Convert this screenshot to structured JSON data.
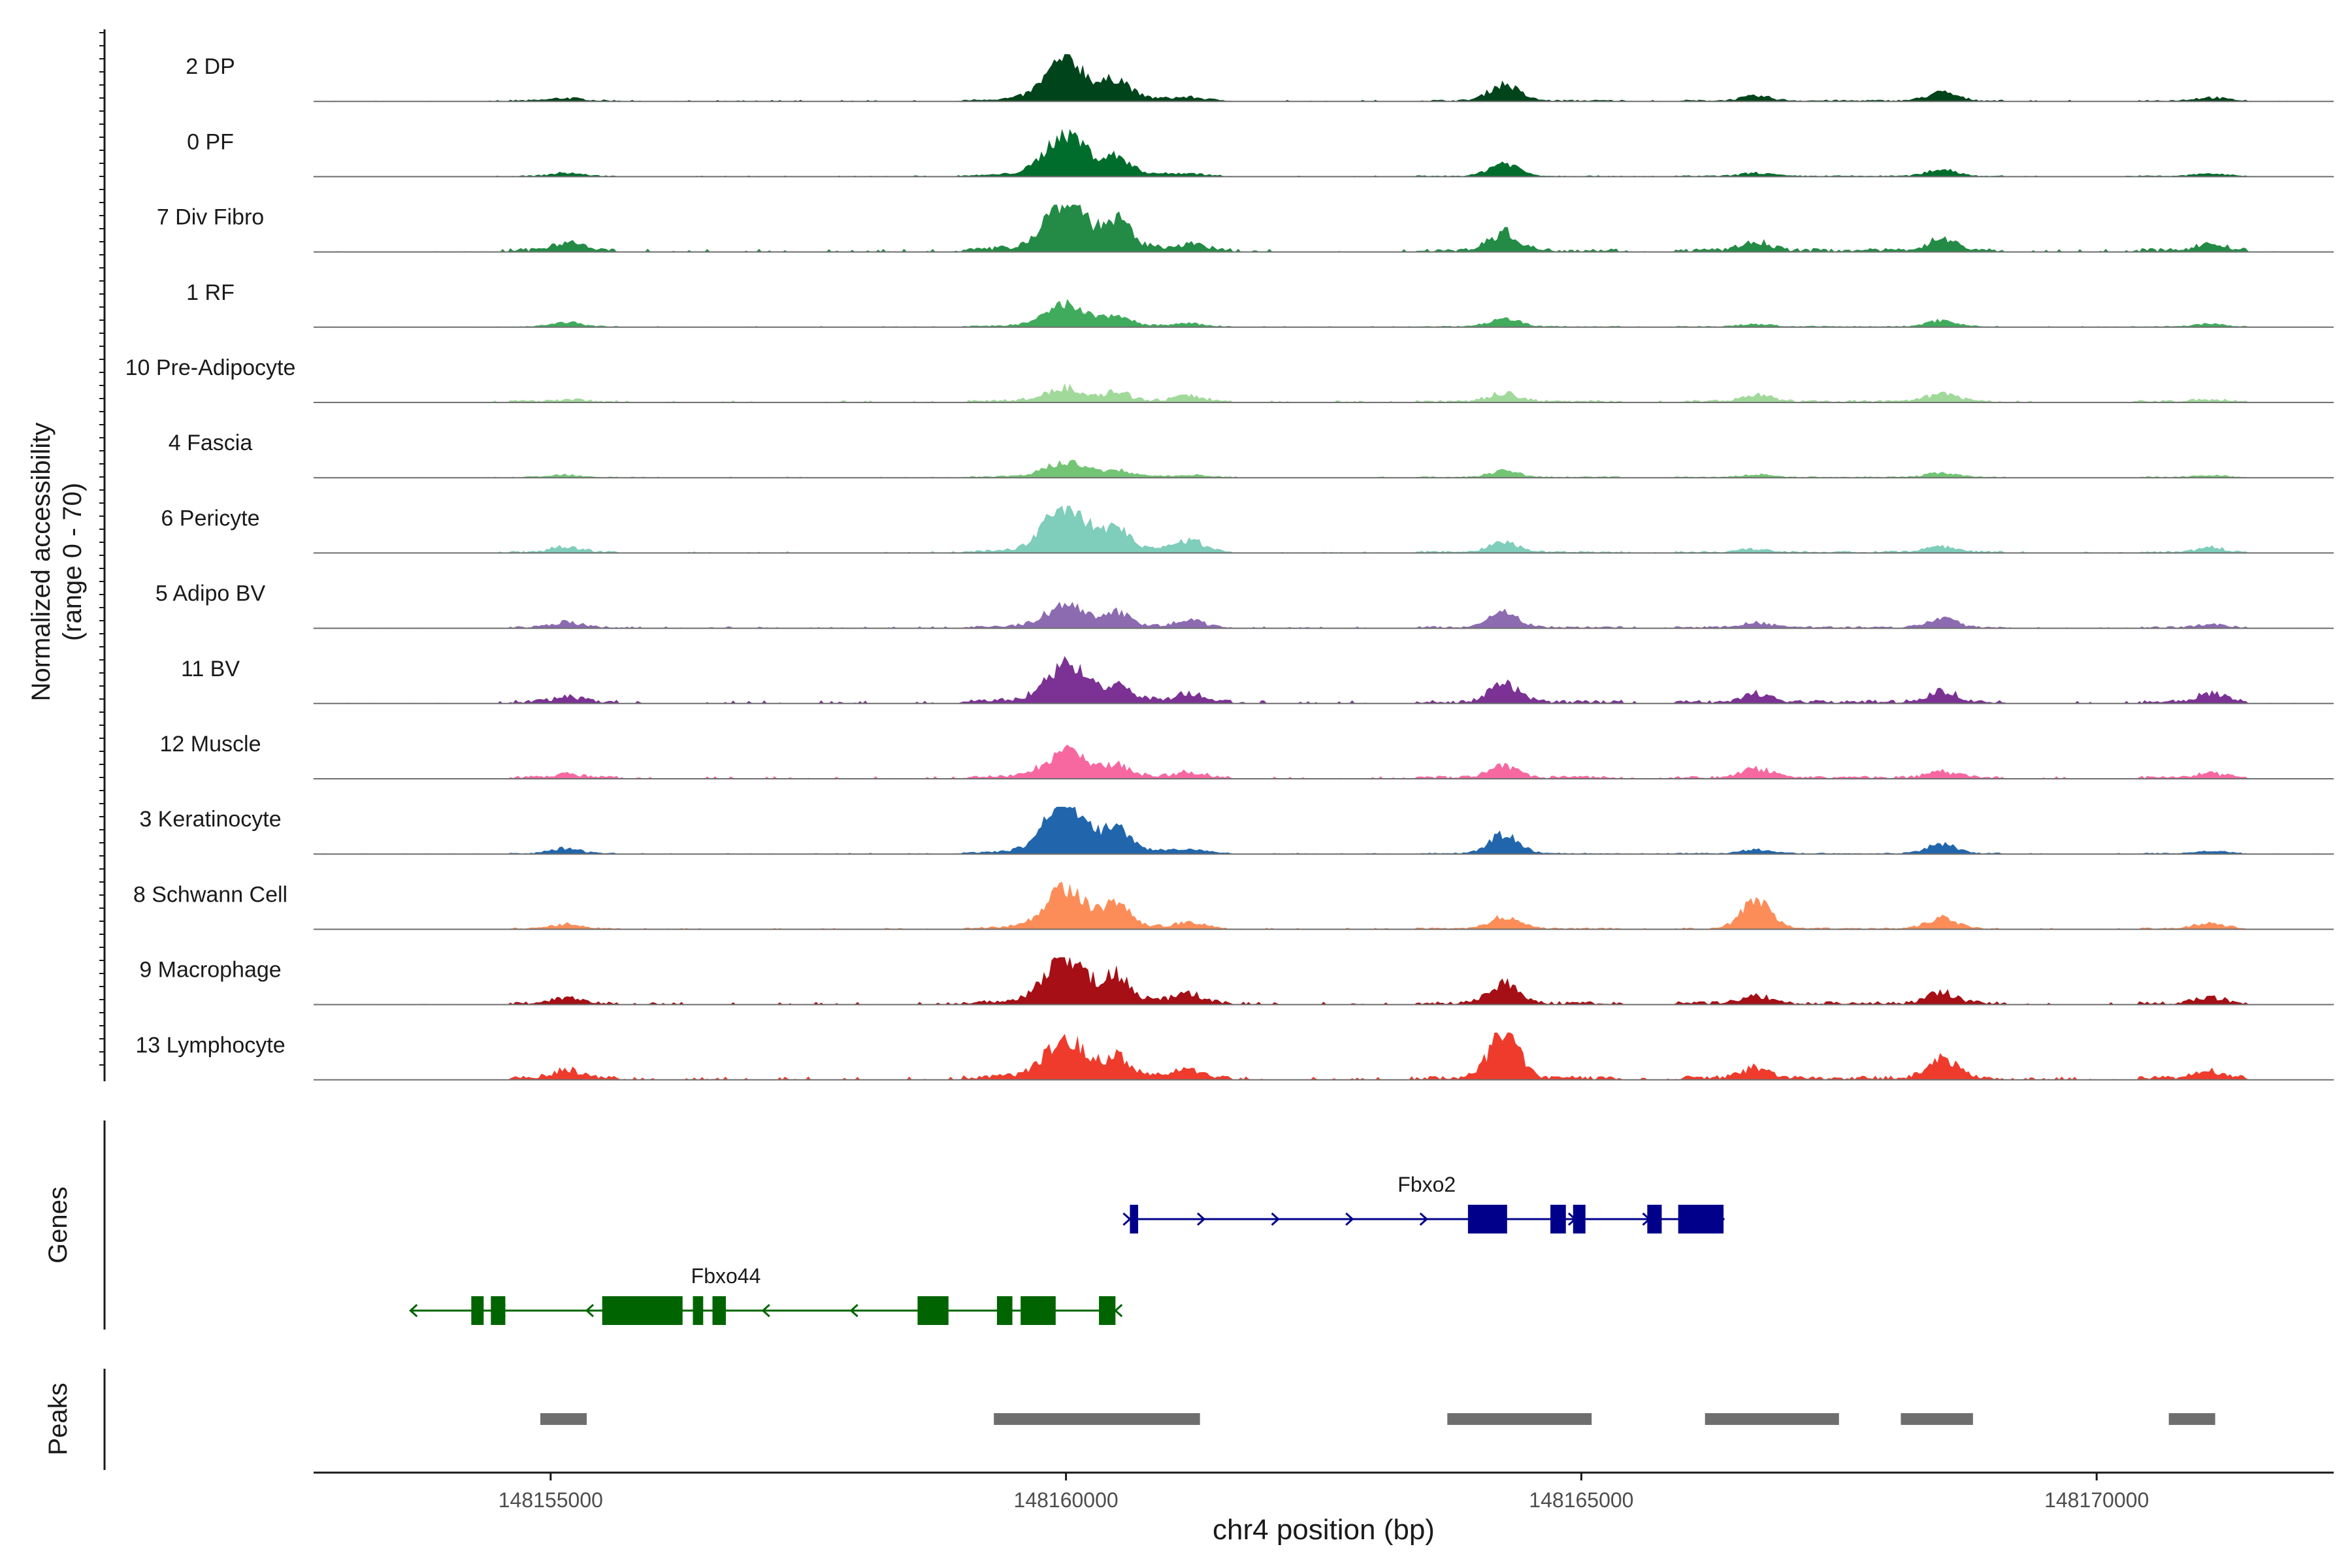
{
  "chart_data": {
    "type": "area",
    "title": "",
    "y_axis_title_line1": "Normalized accessibility",
    "y_axis_title_line2": "(range 0 - 70)",
    "ylim": [
      0,
      70
    ],
    "xlabel": "chr4 position (bp)",
    "xlim": [
      148152700,
      148172300
    ],
    "x_ticks": [
      148155000,
      148160000,
      148165000,
      148170000
    ],
    "x_tick_labels": [
      "148155000",
      "148160000",
      "148165000",
      "148170000"
    ],
    "regions": [
      [
        148154900,
        148155350
      ],
      [
        148159300,
        148161300
      ],
      [
        148163700,
        148165100
      ],
      [
        148166200,
        148167500
      ],
      [
        148168100,
        148168800
      ],
      [
        148170700,
        148171150
      ]
    ],
    "peak_positions": [
      148155150,
      148160000,
      148160500,
      148161200,
      148164250,
      148166700,
      148168500,
      148171100
    ],
    "tracks": [
      {
        "name": "2 DP",
        "color": "#00441b",
        "peak_heights": [
          4,
          57,
          26,
          4,
          26,
          7,
          13,
          5
        ],
        "noise": 4
      },
      {
        "name": "0 PF",
        "color": "#006d2c",
        "peak_heights": [
          5,
          60,
          22,
          3,
          21,
          5,
          11,
          4
        ],
        "noise": 3
      },
      {
        "name": "7 Div Fibro",
        "color": "#238b45",
        "peak_heights": [
          13,
          73,
          38,
          8,
          28,
          13,
          18,
          10
        ],
        "noise": 9
      },
      {
        "name": "1 RF",
        "color": "#41ab5d",
        "peak_heights": [
          7,
          30,
          13,
          4,
          14,
          4,
          10,
          4
        ],
        "noise": 3
      },
      {
        "name": "10 Pre-Adipocyte",
        "color": "#a1d99b",
        "peak_heights": [
          3,
          18,
          12,
          8,
          13,
          11,
          12,
          3
        ],
        "noise": 6
      },
      {
        "name": "4 Fascia",
        "color": "#74c476",
        "peak_heights": [
          4,
          21,
          8,
          3,
          10,
          4,
          7,
          3
        ],
        "noise": 3
      },
      {
        "name": "6 Pericyte",
        "color": "#7fcdbb",
        "peak_heights": [
          9,
          67,
          28,
          18,
          16,
          5,
          9,
          7
        ],
        "noise": 5
      },
      {
        "name": "5 Adipo BV",
        "color": "#8c6bb1",
        "peak_heights": [
          8,
          31,
          19,
          10,
          23,
          7,
          14,
          4
        ],
        "noise": 5
      },
      {
        "name": "11 BV",
        "color": "#7b3294",
        "peak_heights": [
          8,
          49,
          24,
          12,
          28,
          13,
          18,
          13
        ],
        "noise": 9
      },
      {
        "name": "12 Muscle",
        "color": "#f768a1",
        "peak_heights": [
          5,
          36,
          15,
          8,
          18,
          14,
          9,
          6
        ],
        "noise": 7
      },
      {
        "name": "3 Keratinocyte",
        "color": "#2166ac",
        "peak_heights": [
          8,
          74,
          31,
          5,
          31,
          6,
          15,
          4
        ],
        "noise": 3
      },
      {
        "name": "8 Schwann Cell",
        "color": "#fc8d59",
        "peak_heights": [
          7,
          56,
          32,
          8,
          18,
          45,
          17,
          9
        ],
        "noise": 4
      },
      {
        "name": "9 Macrophage",
        "color": "#a50f15",
        "peak_heights": [
          9,
          66,
          35,
          13,
          32,
          12,
          17,
          9
        ],
        "noise": 8
      },
      {
        "name": "13 Lymphocyte",
        "color": "#ef3b2c",
        "peak_heights": [
          13,
          54,
          26,
          12,
          70,
          16,
          30,
          11
        ],
        "noise": 10
      }
    ],
    "genes": [
      {
        "name": "Fbxo2",
        "strand": "+",
        "color": "#00008b",
        "start": 148160620,
        "end": 148166380,
        "exons": [
          [
            148160620,
            148160700
          ],
          [
            148163900,
            148164280
          ],
          [
            148164700,
            148164850
          ],
          [
            148164920,
            148165040
          ],
          [
            148165640,
            148165780
          ],
          [
            148165940,
            148166380
          ]
        ]
      },
      {
        "name": "Fbxo44",
        "strand": "-",
        "color": "#006400",
        "start": 148153640,
        "end": 148160480,
        "exons": [
          [
            148154230,
            148154350
          ],
          [
            148154420,
            148154560
          ],
          [
            148155500,
            148156280
          ],
          [
            148156380,
            148156480
          ],
          [
            148156570,
            148156700
          ],
          [
            148158560,
            148158860
          ],
          [
            148159330,
            148159480
          ],
          [
            148159560,
            148159900
          ],
          [
            148160320,
            148160480
          ]
        ]
      }
    ],
    "genes_label": "Genes",
    "peaks_label": "Peaks",
    "peak_color": "#6e6e6e"
  }
}
